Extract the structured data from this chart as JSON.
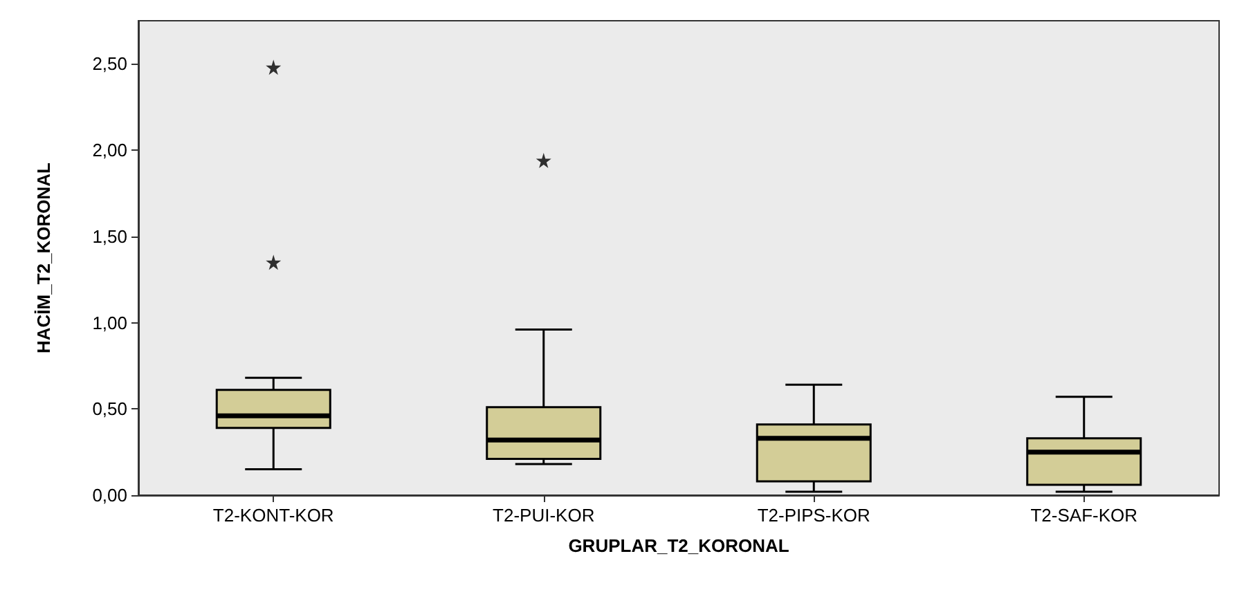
{
  "chart_data": {
    "type": "box",
    "xlabel": "GRUPLAR_T2_KORONAL",
    "ylabel": "HACİM_T2_KORONAL",
    "categories": [
      "T2-KONT-KOR",
      "T2-PUI-KOR",
      "T2-PIPS-KOR",
      "T2-SAF-KOR"
    ],
    "color": "#d3cd97",
    "marker": "star",
    "grid": false,
    "boxes": [
      {
        "low": 0.15,
        "q1": 0.39,
        "median": 0.46,
        "q3": 0.61,
        "high": 0.68,
        "outliers": [
          1.35,
          2.48
        ]
      },
      {
        "low": 0.18,
        "q1": 0.21,
        "median": 0.32,
        "q3": 0.51,
        "high": 0.96,
        "outliers": [
          1.94
        ]
      },
      {
        "low": 0.02,
        "q1": 0.08,
        "median": 0.33,
        "q3": 0.41,
        "high": 0.64
      },
      {
        "low": 0.02,
        "q1": 0.06,
        "median": 0.25,
        "q3": 0.33,
        "high": 0.57
      }
    ],
    "ylim": [
      0,
      2.75
    ],
    "yticks": [
      {
        "value": 0,
        "label": "0,00"
      },
      {
        "value": 0.5,
        "label": "0,50"
      },
      {
        "value": 1,
        "label": "1,00"
      },
      {
        "value": 1.5,
        "label": "1,50"
      },
      {
        "value": 2,
        "label": "2,00"
      },
      {
        "value": 2.5,
        "label": "2,50"
      }
    ]
  }
}
